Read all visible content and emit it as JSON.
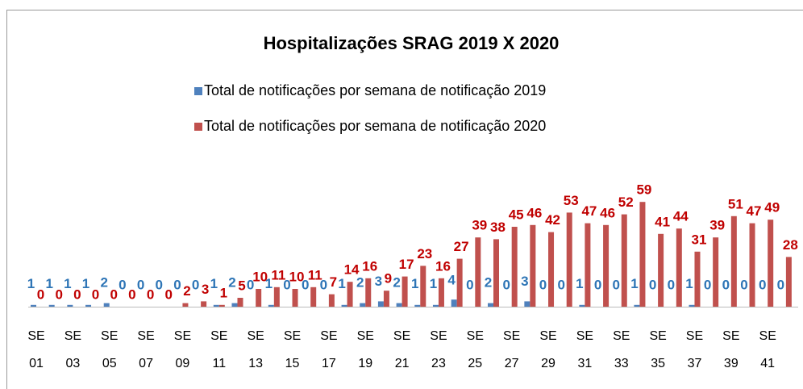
{
  "chart_data": {
    "type": "bar",
    "title": "Hospitalizações SRAG 2019 X 2020",
    "categories": [
      "SE 01",
      null,
      "SE 03",
      null,
      "SE 05",
      null,
      "SE 07",
      null,
      "SE 09",
      null,
      "SE 11",
      null,
      "SE 13",
      null,
      "SE 15",
      null,
      "SE 17",
      null,
      "SE 19",
      null,
      "SE 21",
      null,
      "SE 23",
      null,
      "SE 25",
      null,
      "SE 27",
      null,
      "SE 29",
      null,
      "SE 31",
      null,
      "SE 33",
      null,
      "SE 35",
      null,
      "SE 37",
      null,
      "SE 39",
      null,
      "SE 41",
      null
    ],
    "series": [
      {
        "name": "Total de notificações por semana de notificação 2019",
        "color": "#4f81bd",
        "values": [
          1,
          1,
          1,
          1,
          2,
          0,
          0,
          0,
          0,
          0,
          1,
          2,
          0,
          1,
          0,
          0,
          0,
          1,
          2,
          3,
          2,
          1,
          1,
          4,
          0,
          2,
          0,
          3,
          0,
          0,
          1,
          0,
          0,
          1,
          0,
          0,
          1,
          0,
          0,
          0,
          0,
          0
        ]
      },
      {
        "name": "Total de notificações por semana de notificação 2020",
        "color": "#c0504d",
        "values": [
          0,
          0,
          0,
          0,
          0,
          0,
          0,
          0,
          2,
          3,
          1,
          5,
          10,
          11,
          10,
          11,
          7,
          14,
          16,
          9,
          17,
          23,
          16,
          27,
          39,
          38,
          45,
          46,
          42,
          53,
          47,
          46,
          52,
          59,
          41,
          44,
          31,
          39,
          51,
          47,
          49,
          28
        ]
      }
    ]
  }
}
